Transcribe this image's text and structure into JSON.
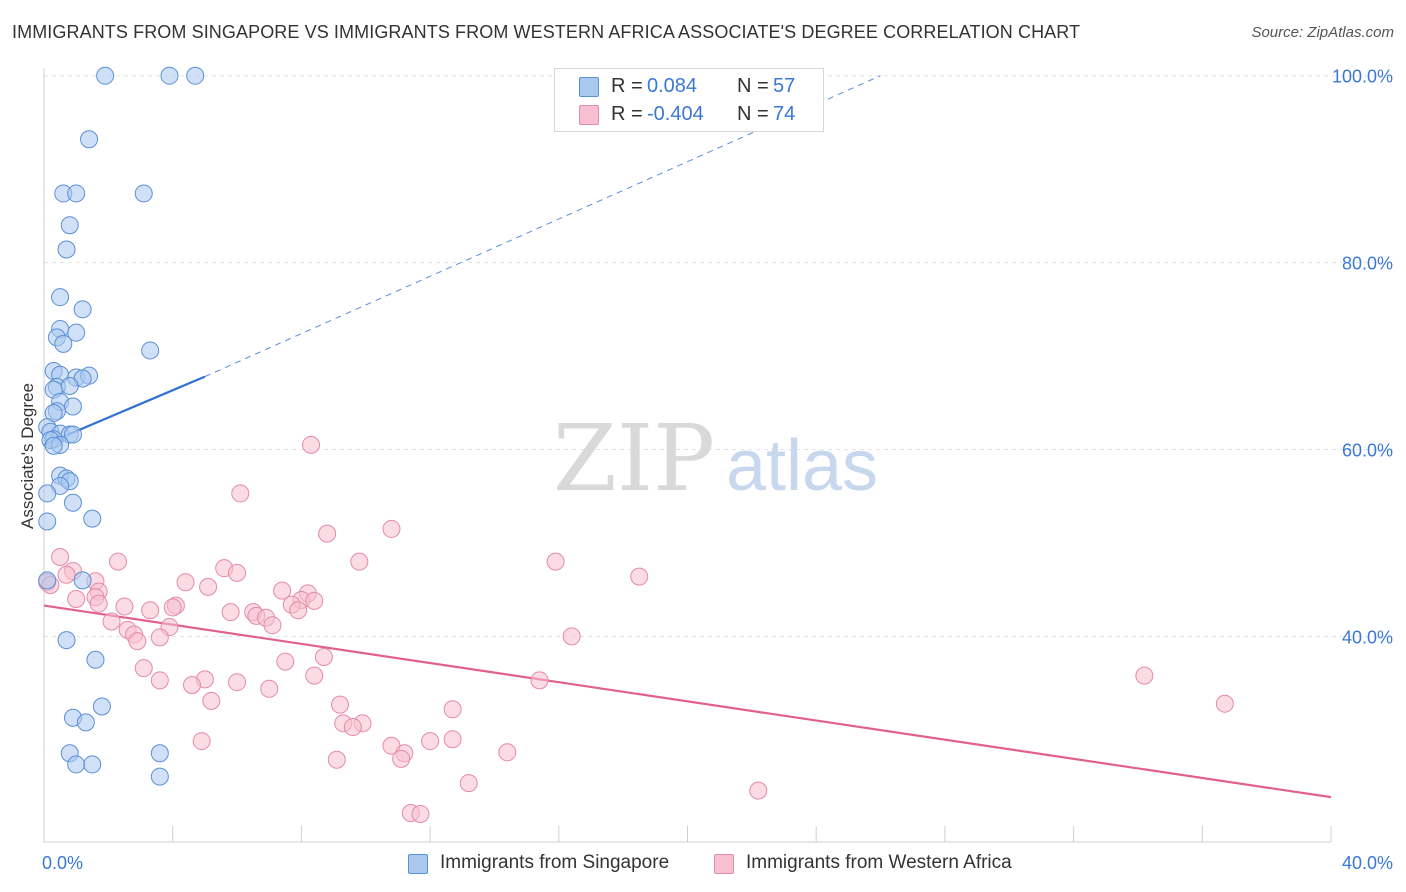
{
  "header": {
    "title": "IMMIGRANTS FROM SINGAPORE VS IMMIGRANTS FROM WESTERN AFRICA ASSOCIATE'S DEGREE CORRELATION CHART",
    "source": "Source: ZipAtlas.com"
  },
  "watermark": {
    "zip": "ZIP",
    "atlas": "atlas"
  },
  "legend": {
    "r_label": "R =",
    "n_label": "N =",
    "series": [
      {
        "r": "0.084",
        "n": "57"
      },
      {
        "r": "-0.404",
        "n": "74"
      }
    ]
  },
  "colors": {
    "singapore_fill": "#a9c8f0",
    "singapore_stroke": "#5b8fd6",
    "singapore_line": "#2f72d2",
    "wafrica_fill": "#f7bfd0",
    "wafrica_stroke": "#e58aa8",
    "wafrica_line": "#e2608e",
    "axis_label": "#3b78d4",
    "grid": "#e3e3e3"
  },
  "chart_data": {
    "type": "scatter",
    "title": "IMMIGRANTS FROM SINGAPORE VS IMMIGRANTS FROM WESTERN AFRICA ASSOCIATE'S DEGREE CORRELATION CHART",
    "xlabel": "",
    "ylabel": "Associate's Degree",
    "xlim": [
      0,
      40
    ],
    "ylim": [
      18,
      102
    ],
    "x_tick_labels": [
      "0.0%",
      "40.0%"
    ],
    "y_ticks": [
      40,
      60,
      80,
      100
    ],
    "y_tick_labels": [
      "40.0%",
      "60.0%",
      "80.0%",
      "100.0%"
    ],
    "grid": true,
    "legend_position": "bottom",
    "series": [
      {
        "name": "Immigrants from Singapore",
        "r": 0.084,
        "n": 57,
        "trend": {
          "x": [
            0,
            5.0
          ],
          "y": [
            60.5,
            67.8
          ],
          "dashed_to": [
            26.0,
            100.0
          ]
        },
        "points": [
          [
            1.9,
            100
          ],
          [
            3.9,
            100
          ],
          [
            4.7,
            100
          ],
          [
            1.4,
            93.2
          ],
          [
            0.6,
            87.4
          ],
          [
            1.0,
            87.4
          ],
          [
            3.1,
            87.4
          ],
          [
            0.8,
            84.0
          ],
          [
            0.7,
            81.4
          ],
          [
            0.5,
            76.3
          ],
          [
            1.2,
            75.0
          ],
          [
            0.5,
            72.9
          ],
          [
            1.0,
            72.5
          ],
          [
            0.4,
            72.0
          ],
          [
            0.6,
            71.3
          ],
          [
            3.3,
            70.6
          ],
          [
            0.3,
            68.4
          ],
          [
            0.5,
            68.0
          ],
          [
            1.0,
            67.7
          ],
          [
            1.4,
            67.9
          ],
          [
            1.2,
            67.6
          ],
          [
            0.4,
            66.7
          ],
          [
            0.8,
            66.8
          ],
          [
            0.3,
            66.4
          ],
          [
            0.5,
            65.1
          ],
          [
            0.9,
            64.6
          ],
          [
            0.4,
            64.1
          ],
          [
            0.3,
            63.9
          ],
          [
            0.1,
            62.4
          ],
          [
            0.2,
            61.9
          ],
          [
            0.5,
            61.7
          ],
          [
            0.8,
            61.6
          ],
          [
            0.9,
            61.6
          ],
          [
            0.3,
            61.1
          ],
          [
            0.2,
            61.0
          ],
          [
            0.5,
            60.5
          ],
          [
            0.3,
            60.4
          ],
          [
            0.5,
            57.2
          ],
          [
            0.7,
            56.9
          ],
          [
            0.8,
            56.6
          ],
          [
            0.5,
            56.1
          ],
          [
            0.1,
            55.3
          ],
          [
            0.9,
            54.3
          ],
          [
            1.5,
            52.6
          ],
          [
            0.1,
            52.3
          ],
          [
            0.1,
            46.0
          ],
          [
            1.2,
            46.0
          ],
          [
            0.7,
            39.6
          ],
          [
            1.6,
            37.5
          ],
          [
            1.8,
            32.5
          ],
          [
            0.9,
            31.3
          ],
          [
            1.3,
            30.8
          ],
          [
            0.8,
            27.5
          ],
          [
            3.6,
            27.5
          ],
          [
            1.0,
            26.3
          ],
          [
            1.5,
            26.3
          ],
          [
            3.6,
            25.0
          ]
        ]
      },
      {
        "name": "Immigrants from Western Africa",
        "r": -0.404,
        "n": 74,
        "trend": {
          "x": [
            0,
            40
          ],
          "y": [
            43.3,
            22.8
          ]
        },
        "points": [
          [
            8.3,
            60.5
          ],
          [
            6.1,
            55.3
          ],
          [
            8.8,
            51.0
          ],
          [
            10.8,
            51.5
          ],
          [
            0.5,
            48.5
          ],
          [
            2.3,
            48.0
          ],
          [
            9.8,
            48.0
          ],
          [
            15.9,
            48.0
          ],
          [
            5.6,
            47.3
          ],
          [
            0.9,
            47.0
          ],
          [
            6.0,
            46.8
          ],
          [
            0.7,
            46.6
          ],
          [
            18.5,
            46.4
          ],
          [
            0.1,
            45.8
          ],
          [
            1.6,
            45.9
          ],
          [
            4.4,
            45.8
          ],
          [
            5.1,
            45.3
          ],
          [
            7.4,
            44.9
          ],
          [
            1.7,
            44.8
          ],
          [
            8.2,
            44.6
          ],
          [
            1.6,
            44.2
          ],
          [
            1.0,
            44.0
          ],
          [
            8.0,
            43.9
          ],
          [
            8.4,
            43.8
          ],
          [
            1.7,
            43.5
          ],
          [
            2.5,
            43.2
          ],
          [
            4.1,
            43.3
          ],
          [
            7.7,
            43.4
          ],
          [
            4.0,
            43.1
          ],
          [
            3.3,
            42.8
          ],
          [
            7.9,
            42.8
          ],
          [
            5.8,
            42.6
          ],
          [
            6.5,
            42.6
          ],
          [
            6.6,
            42.2
          ],
          [
            6.9,
            42.0
          ],
          [
            2.1,
            41.6
          ],
          [
            7.1,
            41.2
          ],
          [
            3.9,
            41.0
          ],
          [
            2.6,
            40.7
          ],
          [
            2.8,
            40.2
          ],
          [
            3.6,
            39.9
          ],
          [
            2.9,
            39.5
          ],
          [
            16.4,
            40.0
          ],
          [
            7.5,
            37.3
          ],
          [
            8.7,
            37.8
          ],
          [
            3.1,
            36.6
          ],
          [
            8.4,
            35.8
          ],
          [
            34.2,
            35.8
          ],
          [
            3.6,
            35.3
          ],
          [
            5.0,
            35.4
          ],
          [
            6.0,
            35.1
          ],
          [
            4.6,
            34.8
          ],
          [
            15.4,
            35.3
          ],
          [
            7.0,
            34.4
          ],
          [
            5.2,
            33.1
          ],
          [
            9.2,
            32.7
          ],
          [
            36.7,
            32.8
          ],
          [
            12.7,
            32.2
          ],
          [
            9.3,
            30.7
          ],
          [
            9.9,
            30.7
          ],
          [
            9.6,
            30.3
          ],
          [
            4.9,
            28.8
          ],
          [
            12.0,
            28.8
          ],
          [
            12.7,
            29.0
          ],
          [
            10.8,
            28.3
          ],
          [
            11.2,
            27.5
          ],
          [
            14.4,
            27.6
          ],
          [
            9.1,
            26.8
          ],
          [
            11.1,
            26.9
          ],
          [
            13.2,
            24.3
          ],
          [
            22.2,
            23.5
          ],
          [
            11.4,
            21.1
          ],
          [
            11.7,
            21.0
          ],
          [
            0.2,
            45.5
          ]
        ]
      }
    ]
  }
}
